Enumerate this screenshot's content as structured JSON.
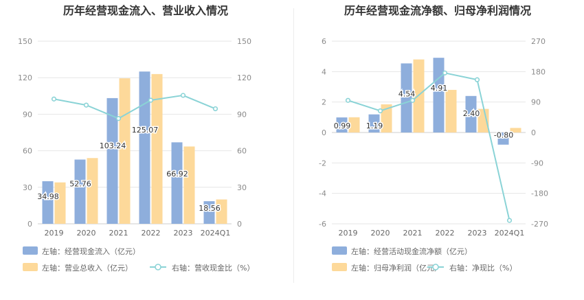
{
  "chart_data": [
    {
      "type": "bar",
      "title": "历年经营现金流入、营业收入情况",
      "categories": [
        "2019",
        "2020",
        "2021",
        "2022",
        "2023",
        "2024Q1"
      ],
      "left_axis": {
        "min": 0,
        "max": 150,
        "ticks": [
          0,
          30,
          60,
          90,
          120,
          150
        ]
      },
      "right_axis": {
        "min": 0,
        "max": 150,
        "ticks": [
          0,
          30,
          60,
          90,
          120,
          150
        ]
      },
      "series": [
        {
          "name": "左轴：经营现金流入（亿元）",
          "kind": "bar",
          "axis": "left",
          "color": "#8eaedc",
          "values": [
            34.98,
            52.76,
            103.24,
            125.07,
            66.92,
            18.56
          ],
          "labels": [
            "34.98",
            "52.76",
            "103.24",
            "125.07",
            "66.92",
            "18.56"
          ]
        },
        {
          "name": "左轴：营业总收入（亿元）",
          "kind": "bar",
          "axis": "left",
          "color": "#fdd99a",
          "values": [
            34.0,
            54.0,
            119.5,
            123.0,
            63.5,
            20.0
          ]
        },
        {
          "name": "右轴：营收现金比（%）",
          "kind": "line",
          "axis": "right",
          "color": "#8ad3d6",
          "values": [
            102.5,
            97.5,
            86.5,
            101.5,
            105.5,
            94.5
          ]
        }
      ]
    },
    {
      "type": "bar",
      "title": "历年经营现金流净额、归母净利润情况",
      "categories": [
        "2019",
        "2020",
        "2021",
        "2022",
        "2023",
        "2024Q1"
      ],
      "left_axis": {
        "min": -6,
        "max": 6,
        "ticks": [
          -6,
          -4,
          -2,
          0,
          2,
          4,
          6
        ]
      },
      "right_axis": {
        "min": -270,
        "max": 270,
        "ticks": [
          -270,
          -180,
          -90,
          0,
          90,
          180,
          270
        ]
      },
      "series": [
        {
          "name": "左轴：经营活动现金流净额（亿元）",
          "kind": "bar",
          "axis": "left",
          "color": "#8eaedc",
          "values": [
            0.99,
            1.19,
            4.54,
            4.91,
            2.4,
            -0.8
          ],
          "labels": [
            "0.99",
            "1.19",
            "4.54",
            "4.91",
            "2.40",
            "-0.80"
          ]
        },
        {
          "name": "左轴：归母净利润（亿元）",
          "kind": "bar",
          "axis": "left",
          "color": "#fdd99a",
          "values": [
            1.0,
            1.85,
            4.8,
            2.8,
            1.55,
            0.3
          ]
        },
        {
          "name": "右轴：净现比（%）",
          "kind": "line",
          "axis": "right",
          "color": "#8ad3d6",
          "values": [
            95,
            64,
            95,
            176,
            156,
            -260
          ]
        }
      ]
    }
  ]
}
